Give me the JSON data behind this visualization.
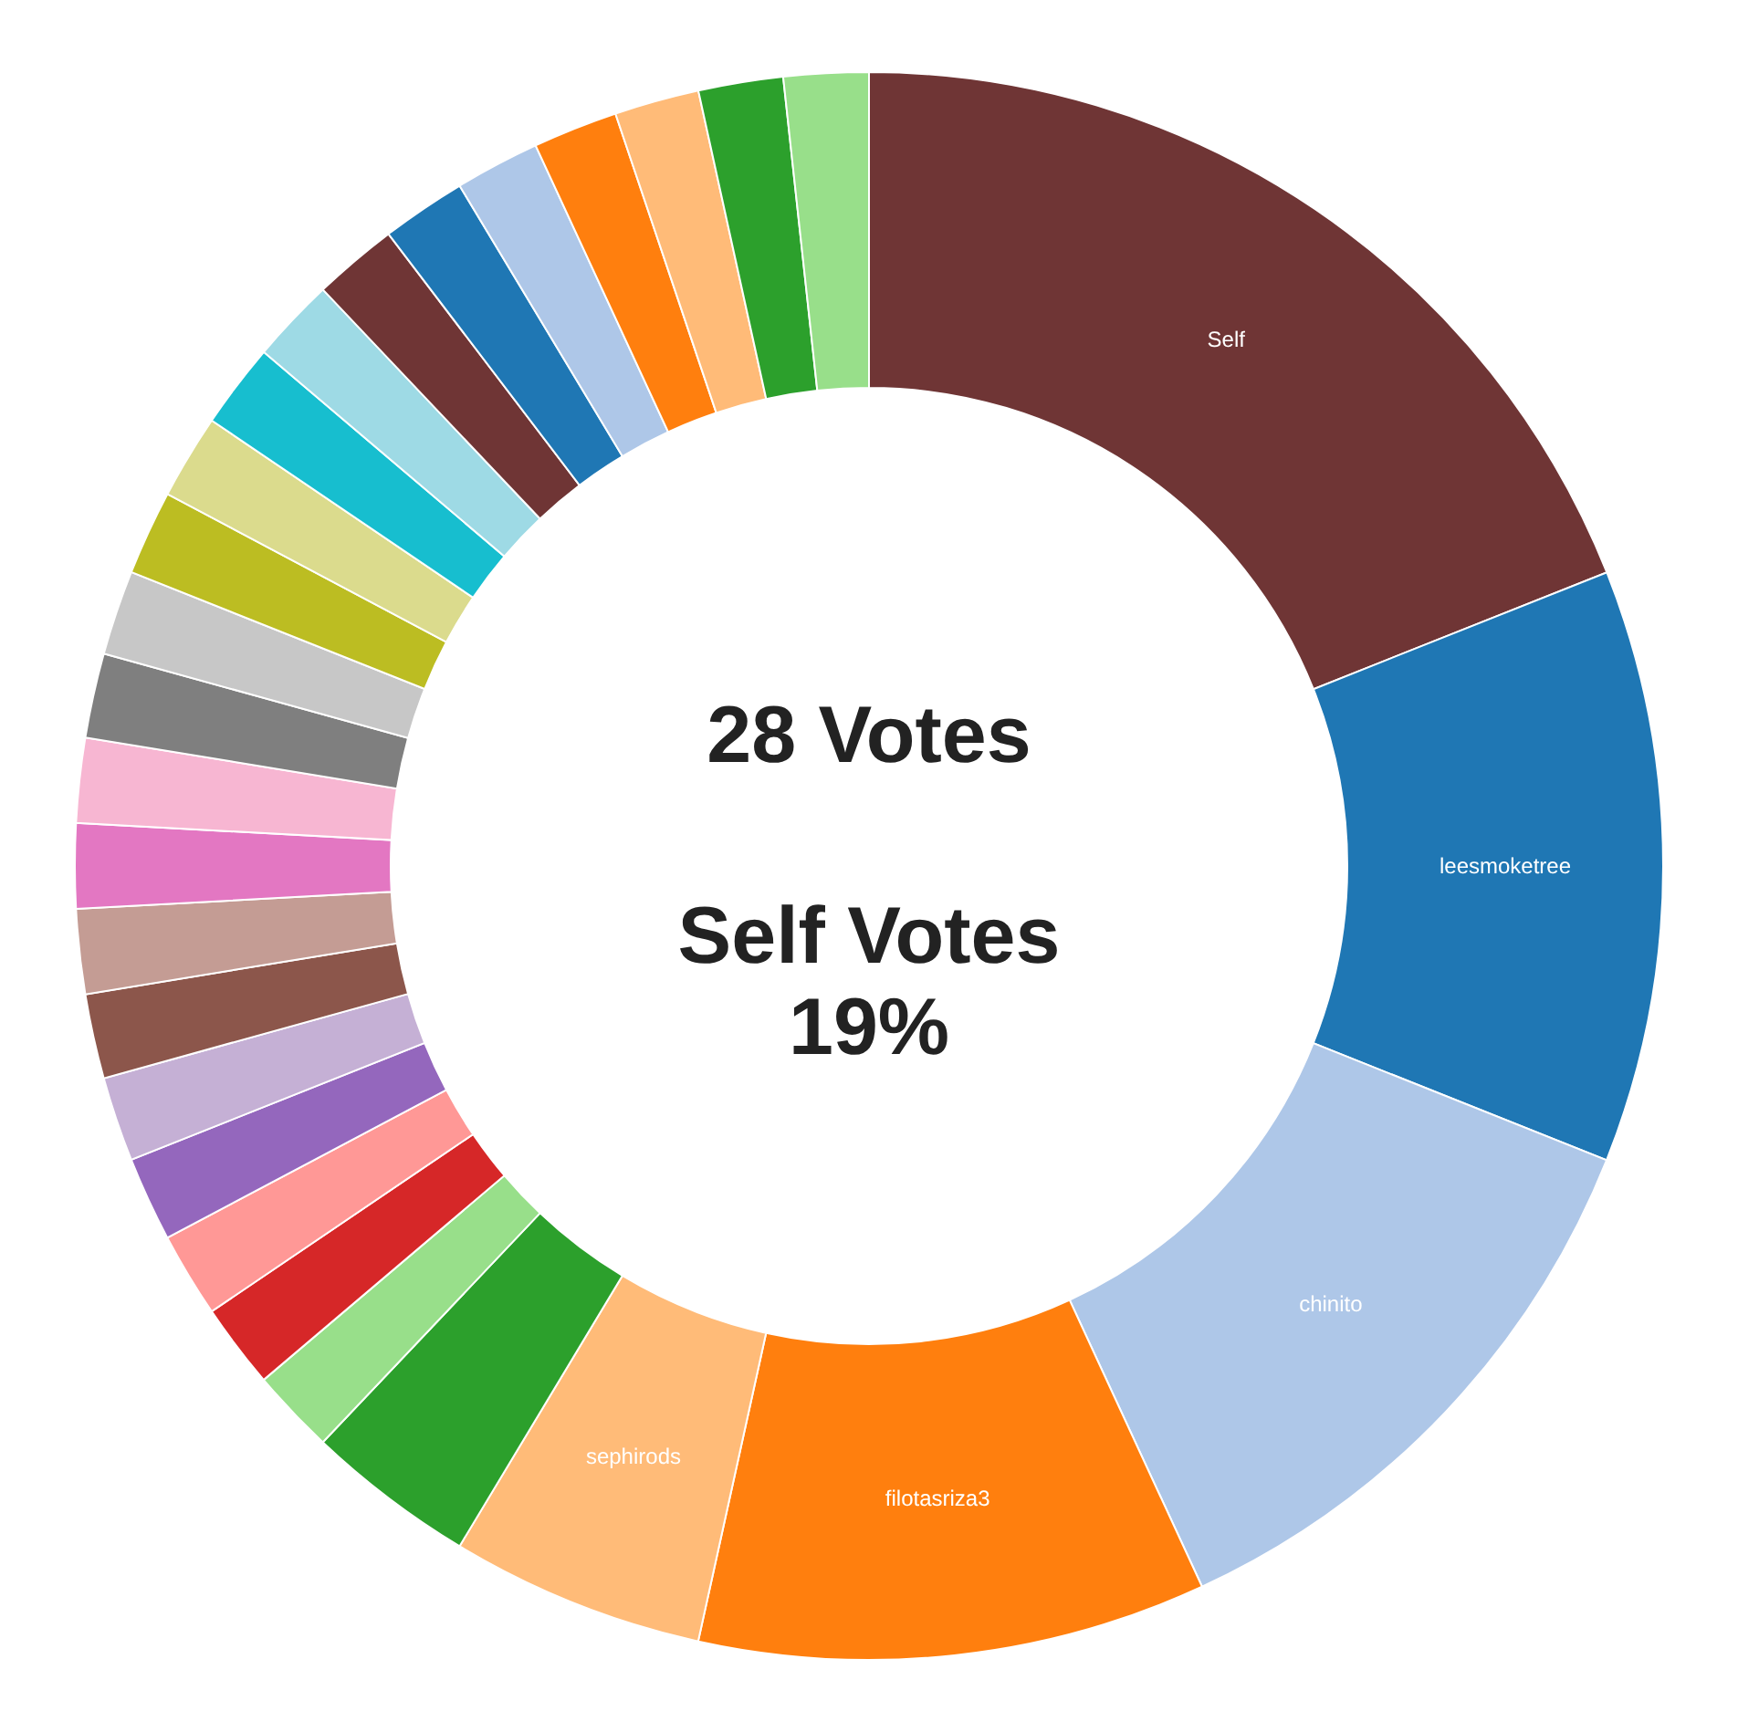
{
  "chart_data": {
    "type": "donut",
    "categories": [
      "Self",
      "leesmoketree",
      "chinito",
      "filotasriza3",
      "sephirods",
      null,
      null,
      null,
      null,
      null,
      null,
      null,
      null,
      null,
      null,
      null,
      null,
      null,
      null,
      null,
      null,
      null,
      null,
      null,
      null,
      null,
      null,
      null
    ],
    "values": [
      18.97,
      12.07,
      12.07,
      10.34,
      5.17,
      3.45,
      1.724,
      1.724,
      1.724,
      1.724,
      1.724,
      1.724,
      1.724,
      1.724,
      1.724,
      1.724,
      1.724,
      1.724,
      1.724,
      1.724,
      1.724,
      1.724,
      1.724,
      1.724,
      1.724,
      1.724,
      1.724,
      1.724
    ],
    "colors": [
      "#6f3535",
      "#1f77b4",
      "#aec7e8",
      "#ff7f0e",
      "#ffbb78",
      "#2ca02c",
      "#98df8a",
      "#d62728",
      "#ff9896",
      "#9467bd",
      "#c5b0d5",
      "#8c564b",
      "#c49c94",
      "#e377c2",
      "#f7b6d2",
      "#7f7f7f",
      "#c7c7c7",
      "#bcbd22",
      "#dbdb8d",
      "#17becf",
      "#9edae5",
      "#6f3535",
      "#1f77b4",
      "#aec7e8",
      "#ff7f0e",
      "#ffbb78",
      "#2ca02c",
      "#98df8a"
    ],
    "annotations": [
      "28 Votes",
      "Self Votes",
      "19%"
    ]
  }
}
